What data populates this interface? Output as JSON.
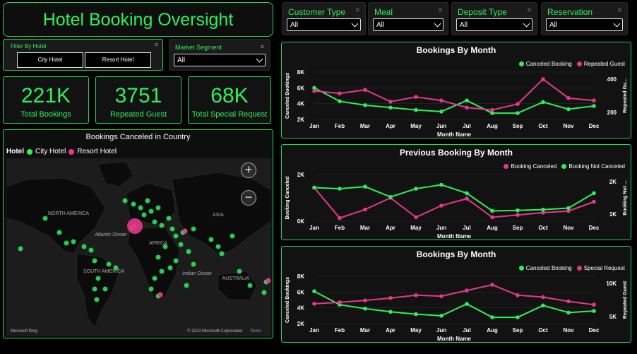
{
  "header": {
    "title": "Hotel Booking Oversight"
  },
  "slicers": [
    {
      "label": "Customer Type",
      "value": "All"
    },
    {
      "label": "Meal",
      "value": "All"
    },
    {
      "label": "Deposit Type",
      "value": "All"
    },
    {
      "label": "Reservation",
      "value": "All"
    }
  ],
  "hotel_filter": {
    "label": "Filter By Hotel",
    "options": [
      "City Hotel",
      "Resort Hotel"
    ]
  },
  "market_segment": {
    "label": "Market Segment",
    "value": "All"
  },
  "kpis": [
    {
      "value": "221K",
      "caption": "Total Bookings"
    },
    {
      "value": "3751",
      "caption": "Repeated Guest"
    },
    {
      "value": "68K",
      "caption": "Total Special Request"
    }
  ],
  "map": {
    "title": "Bookings Canceled in Country",
    "legend_title": "Hotel",
    "legend": [
      "City Hotel",
      "Resort Hotel"
    ],
    "labels": [
      "NORTH AMERICA",
      "SOUTH AMERICA",
      "AFRICA",
      "ASIA",
      "AUSTRALIA",
      "Atlantic Ocean",
      "Indian Ocean"
    ],
    "attribution_left": "Microsoft Bing",
    "attribution_right": "© 2023 Microsoft Corporation",
    "attribution_link": "Terms",
    "zoom_in": "+",
    "zoom_out": "−"
  },
  "colors": {
    "green": "#2cf05a",
    "pink": "#e6388a",
    "accent": "#1fd655"
  },
  "chart_data": [
    {
      "type": "line",
      "title": "Bookings By Month",
      "xlabel": "Month Name",
      "ylabel": "Canceled Bookings",
      "ylabel_right": "Repeated Gu...",
      "categories": [
        "Jan",
        "Feb",
        "Mar",
        "Apr",
        "May",
        "Jun",
        "Jul",
        "Aug",
        "Sep",
        "Oct",
        "Nov",
        "Dec"
      ],
      "y_ticks": [
        "8K",
        "6K",
        "4K",
        "2K"
      ],
      "y2_ticks": [
        "400",
        "200"
      ],
      "ylim": [
        2000,
        8000
      ],
      "y2lim": [
        100,
        500
      ],
      "series": [
        {
          "name": "Canceled Booking",
          "axis": "left",
          "values": [
            6000,
            4300,
            3800,
            3500,
            3200,
            3000,
            4400,
            2800,
            2800,
            4200,
            3300,
            3700
          ]
        },
        {
          "name": "Repeated Guest",
          "axis": "right",
          "values": [
            340,
            320,
            350,
            250,
            290,
            260,
            200,
            180,
            230,
            440,
            280,
            260
          ]
        }
      ]
    },
    {
      "type": "line",
      "title": "Previous Booking By Month",
      "xlabel": "Month Name",
      "ylabel": "Booking Canceled",
      "ylabel_right": "Booking Not ...",
      "categories": [
        "Jan",
        "Feb",
        "Mar",
        "Apr",
        "May",
        "Jun",
        "Jul",
        "Aug",
        "Sep",
        "Oct",
        "Nov",
        "Dec"
      ],
      "y_ticks": [
        "2K",
        "0K"
      ],
      "y2_ticks": [
        "2K",
        "1K"
      ],
      "ylim": [
        0,
        3000
      ],
      "y2lim": [
        0,
        2500
      ],
      "series": [
        {
          "name": "Booking Canceled",
          "axis": "left",
          "values": [
            2150,
            200,
            750,
            1500,
            250,
            1000,
            1450,
            250,
            400,
            550,
            650,
            1250
          ]
        },
        {
          "name": "Booking Not Canceled",
          "axis": "right",
          "values": [
            1800,
            1740,
            1850,
            1300,
            1740,
            1950,
            1500,
            550,
            580,
            620,
            700,
            1500
          ]
        }
      ]
    },
    {
      "type": "line",
      "title": "Bookings By Month",
      "xlabel": "Month Name",
      "ylabel": "Canceled Bookings",
      "ylabel_right": "Repeated Guest",
      "categories": [
        "Jan",
        "Feb",
        "Mar",
        "Apr",
        "May",
        "Jun",
        "Jul",
        "Aug",
        "Sep",
        "Oct",
        "Nov",
        "Dec"
      ],
      "y_ticks": [
        "8K",
        "6K",
        "4K",
        "2K"
      ],
      "y2_ticks": [
        "10K",
        "5K"
      ],
      "ylim": [
        2000,
        8000
      ],
      "y2lim": [
        0,
        10000
      ],
      "series": [
        {
          "name": "Canceled Booking",
          "axis": "left",
          "values": [
            6100,
            4400,
            3900,
            3500,
            3200,
            3000,
            4500,
            2800,
            2800,
            4300,
            3400,
            3600
          ]
        },
        {
          "name": "Special Request",
          "axis": "right",
          "values": [
            4200,
            4500,
            4900,
            5400,
            6000,
            5800,
            7000,
            8200,
            6000,
            5600,
            4700,
            4000
          ]
        }
      ]
    }
  ]
}
